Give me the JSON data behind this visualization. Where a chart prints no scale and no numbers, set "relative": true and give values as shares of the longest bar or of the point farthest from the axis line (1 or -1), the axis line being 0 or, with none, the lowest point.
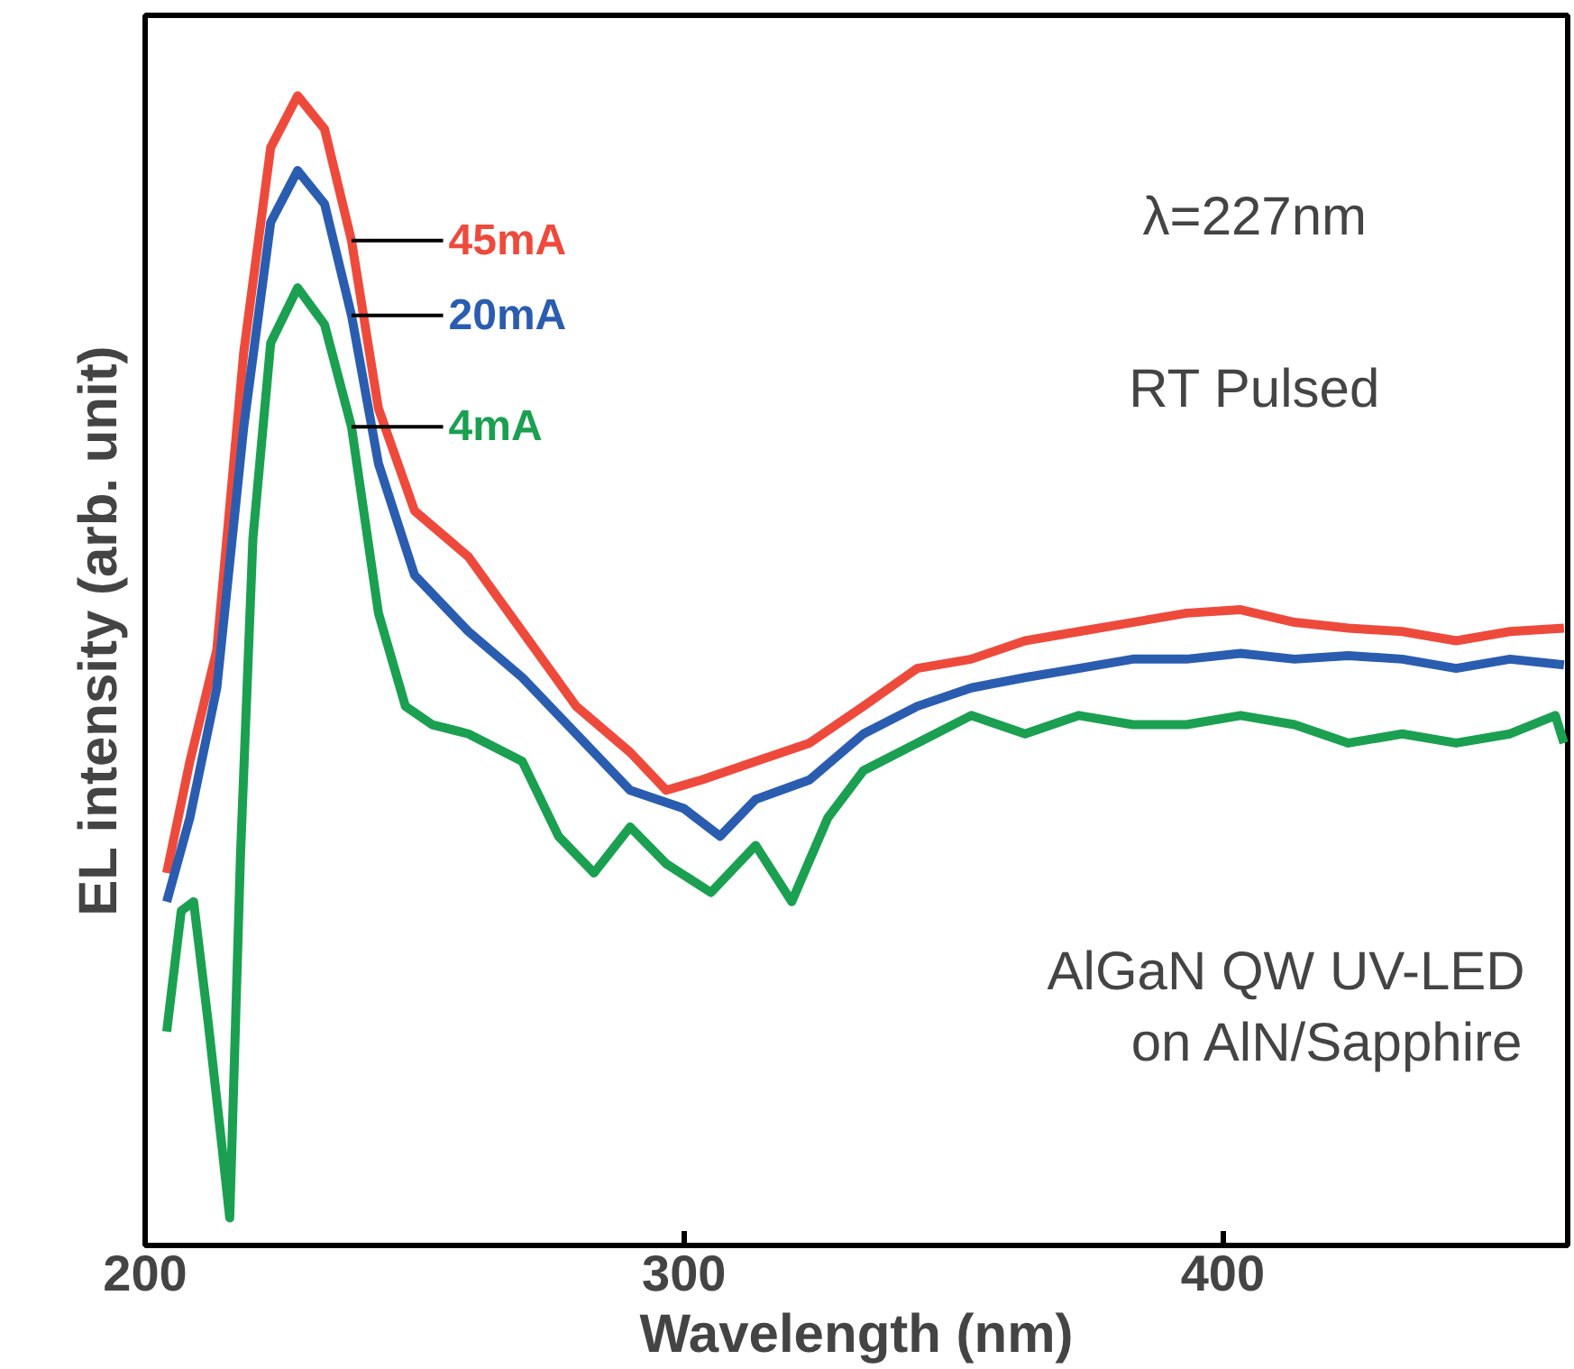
{
  "chart_data": {
    "type": "line",
    "relative": true,
    "xlabel": "Wavelength (nm)",
    "ylabel": "EL intensity (arb. unit)",
    "xlim": [
      200,
      464
    ],
    "xticks": [
      200,
      300,
      400
    ],
    "grid": false,
    "marker": "none",
    "line_style": "solid",
    "annotations": [
      "λ=227nm",
      "RT Pulsed",
      "AlGaN QW UV-LED\non AlN/Sapphire"
    ],
    "series": [
      {
        "name": "45mA",
        "color": "#ee4a3c",
        "x": [
          204,
          208.3,
          213.3,
          218.3,
          223.3,
          228.3,
          233.3,
          238.3,
          243.3,
          250,
          260,
          270,
          280,
          290,
          296.7,
          303.3,
          313.3,
          323.3,
          333.3,
          343.3,
          353.3,
          363.3,
          373.3,
          383.3,
          393.3,
          403.3,
          413.3,
          423.3,
          433.3,
          443.3,
          453.3,
          463.3
        ],
        "values": [
          0.324,
          0.421,
          0.518,
          0.777,
          0.955,
          1.0,
          0.971,
          0.874,
          0.728,
          0.639,
          0.599,
          0.534,
          0.469,
          0.429,
          0.396,
          0.405,
          0.421,
          0.437,
          0.469,
          0.502,
          0.51,
          0.526,
          0.534,
          0.542,
          0.55,
          0.553,
          0.542,
          0.537,
          0.534,
          0.526,
          0.534,
          0.537
        ]
      },
      {
        "name": "20mA",
        "color": "#2a5db0",
        "x": [
          204,
          208.3,
          213.3,
          218.3,
          223.3,
          228.3,
          233.3,
          238.3,
          243.3,
          250,
          260,
          270,
          280,
          290,
          300,
          306.7,
          313.3,
          323.3,
          333.3,
          343.3,
          353.3,
          363.3,
          373.3,
          383.3,
          393.3,
          403.3,
          413.3,
          423.3,
          433.3,
          443.3,
          453.3,
          463.3
        ],
        "values": [
          0.299,
          0.372,
          0.485,
          0.712,
          0.89,
          0.935,
          0.906,
          0.809,
          0.68,
          0.583,
          0.534,
          0.494,
          0.445,
          0.396,
          0.38,
          0.356,
          0.388,
          0.405,
          0.445,
          0.469,
          0.485,
          0.494,
          0.502,
          0.51,
          0.51,
          0.515,
          0.51,
          0.513,
          0.51,
          0.502,
          0.51,
          0.505
        ]
      },
      {
        "name": "4mA",
        "color": "#1aa050",
        "x": [
          204,
          206.7,
          209,
          211.7,
          214,
          215.7,
          217.7,
          220,
          223.3,
          228.3,
          233.3,
          238.3,
          243.3,
          248.3,
          253.3,
          260,
          270,
          276.7,
          283.3,
          290,
          296.7,
          305,
          313.3,
          320,
          326.7,
          333.3,
          343.3,
          353.3,
          363.3,
          373.3,
          383.3,
          393.3,
          403.3,
          413.3,
          423.3,
          433.3,
          443.3,
          453.3,
          461.7,
          463.3
        ],
        "values": [
          0.186,
          0.291,
          0.299,
          0.194,
          0.097,
          0.024,
          0.34,
          0.615,
          0.785,
          0.833,
          0.801,
          0.712,
          0.55,
          0.469,
          0.453,
          0.445,
          0.421,
          0.356,
          0.324,
          0.364,
          0.332,
          0.307,
          0.348,
          0.299,
          0.372,
          0.413,
          0.437,
          0.461,
          0.445,
          0.461,
          0.453,
          0.453,
          0.461,
          0.453,
          0.437,
          0.445,
          0.437,
          0.445,
          0.461,
          0.437
        ]
      }
    ]
  }
}
